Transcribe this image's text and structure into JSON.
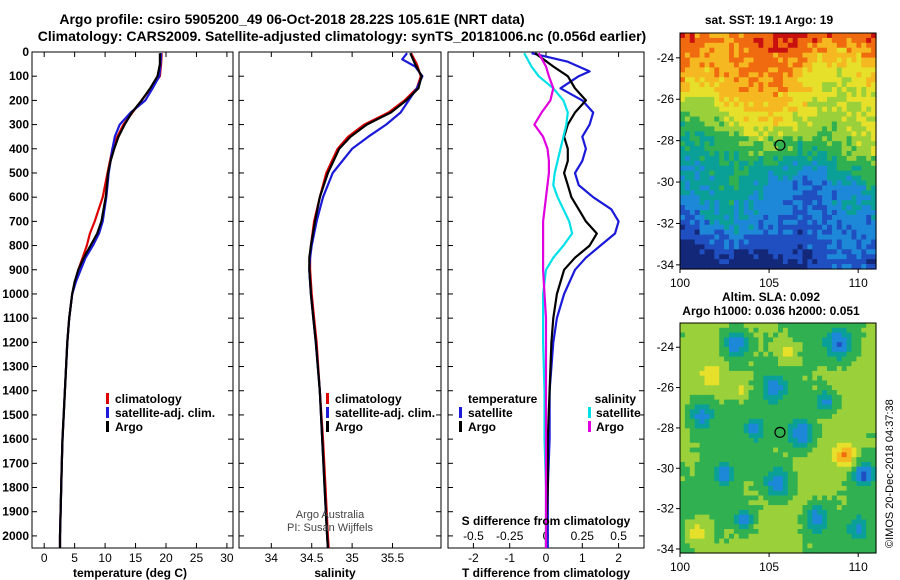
{
  "header": {
    "title_line1": "Argo profile: csiro 5905200_49 06-Oct-2018 28.22S 105.61E (NRT data)",
    "title_line2": "Climatology: CARS2009. Satellite-adjusted climatology: synTS_20181006.nc (0.056d earlier)"
  },
  "credits": {
    "argo_australia": "Argo Australia",
    "pi": "PI: Susan Wijffels",
    "imos_stamp": "©IMOS 20-Dec-2018 04:37:38"
  },
  "colors": {
    "climatology": "#dd0000",
    "satellite": "#1a1ad8",
    "argo": "#000000",
    "sat_salinity": "#00e0e8",
    "argo_salinity": "#e000e0"
  },
  "chart_data": [
    {
      "id": "temperature",
      "type": "line",
      "xlabel": "temperature (deg C)",
      "ylabel": "",
      "xlim": [
        -2,
        31
      ],
      "ylim": [
        2050,
        0
      ],
      "xticks": [
        0,
        5,
        10,
        15,
        20,
        25,
        30
      ],
      "yticks": [
        0,
        100,
        200,
        300,
        400,
        500,
        600,
        700,
        800,
        900,
        1000,
        1100,
        1200,
        1300,
        1400,
        1500,
        1600,
        1700,
        1800,
        1900,
        2000
      ],
      "legend": [
        "climatology",
        "satellite-adj. clim.",
        "Argo"
      ],
      "series": [
        {
          "name": "climatology",
          "color": "#dd0000",
          "depth": [
            5,
            50,
            100,
            150,
            200,
            250,
            300,
            350,
            400,
            450,
            500,
            600,
            700,
            750,
            800,
            850,
            900,
            950,
            1000,
            1100,
            1200,
            1300,
            1400,
            1500,
            1600,
            1700,
            1800,
            1900,
            2000,
            2050
          ],
          "values": [
            19.3,
            19.2,
            19.0,
            17.5,
            16.0,
            14.5,
            13.0,
            12.0,
            11.2,
            10.8,
            10.4,
            9.6,
            8.3,
            7.5,
            7.0,
            6.3,
            5.6,
            5.1,
            4.6,
            4.1,
            3.8,
            3.6,
            3.4,
            3.2,
            3.0,
            2.9,
            2.8,
            2.7,
            2.6,
            2.6
          ]
        },
        {
          "name": "satellite-adj. clim.",
          "color": "#1a1ad8",
          "depth": [
            5,
            50,
            100,
            150,
            200,
            250,
            300,
            350,
            400,
            450,
            500,
            600,
            700,
            750,
            800,
            850,
            900,
            950,
            1000,
            1100,
            1200,
            1300,
            1400,
            1500,
            1600,
            1700,
            1800,
            1900,
            2000,
            2050
          ],
          "values": [
            19.2,
            19.1,
            18.9,
            17.8,
            16.6,
            14.2,
            12.4,
            11.6,
            11.2,
            10.9,
            10.6,
            10.2,
            9.6,
            9.0,
            8.0,
            6.8,
            6.0,
            5.2,
            4.6,
            4.1,
            3.8,
            3.6,
            3.4,
            3.2,
            3.0,
            2.9,
            2.8,
            2.7,
            2.6,
            2.6
          ]
        },
        {
          "name": "Argo",
          "color": "#000000",
          "depth": [
            5,
            50,
            100,
            150,
            200,
            250,
            300,
            350,
            400,
            450,
            500,
            600,
            700,
            750,
            800,
            850,
            900,
            950,
            1000,
            1100,
            1200,
            1300,
            1400,
            1500,
            1600,
            1700,
            1800,
            1900,
            2000,
            2050
          ],
          "values": [
            19.0,
            19.0,
            18.6,
            17.4,
            16.0,
            14.4,
            13.2,
            12.2,
            11.5,
            10.9,
            10.5,
            10.1,
            9.4,
            8.7,
            7.6,
            6.5,
            5.6,
            5.0,
            4.6,
            4.1,
            3.8,
            3.6,
            3.4,
            3.2,
            3.0,
            2.9,
            2.8,
            2.7,
            2.6,
            2.6
          ]
        }
      ]
    },
    {
      "id": "salinity",
      "type": "line",
      "xlabel": "salinity",
      "ylabel": "",
      "xlim": [
        33.6,
        36.1
      ],
      "ylim": [
        2050,
        0
      ],
      "xticks": [
        34,
        34.5,
        35,
        35.5
      ],
      "legend": [
        "climatology",
        "satellite-adj. clim.",
        "Argo"
      ],
      "series": [
        {
          "name": "climatology",
          "color": "#dd0000",
          "depth": [
            5,
            50,
            100,
            150,
            200,
            250,
            300,
            350,
            400,
            500,
            600,
            700,
            800,
            850,
            900,
            1000,
            1100,
            1200,
            1400,
            1600,
            1800,
            2000,
            2050
          ],
          "values": [
            35.73,
            35.8,
            35.85,
            35.8,
            35.65,
            35.45,
            35.15,
            34.95,
            34.82,
            34.68,
            34.6,
            34.53,
            34.49,
            34.48,
            34.48,
            34.5,
            34.53,
            34.56,
            34.6,
            34.64,
            34.67,
            34.7,
            34.71
          ]
        },
        {
          "name": "satellite-adj. clim.",
          "color": "#1a1ad8",
          "depth": [
            5,
            30,
            60,
            100,
            150,
            200,
            250,
            300,
            350,
            400,
            500,
            600,
            700,
            800,
            850,
            900,
            1000,
            1100,
            1200,
            1400,
            1600,
            1800,
            2000,
            2050
          ],
          "values": [
            35.68,
            35.62,
            35.78,
            35.87,
            35.8,
            35.7,
            35.6,
            35.42,
            35.2,
            35.0,
            34.76,
            34.64,
            34.56,
            34.5,
            34.48,
            34.47,
            34.49,
            34.52,
            34.55,
            34.6,
            34.63,
            34.66,
            34.69,
            34.7
          ]
        },
        {
          "name": "Argo",
          "color": "#000000",
          "depth": [
            5,
            50,
            100,
            150,
            200,
            250,
            300,
            350,
            400,
            500,
            600,
            700,
            800,
            850,
            900,
            1000,
            1100,
            1200,
            1400,
            1600,
            1800,
            2000,
            2050
          ],
          "values": [
            35.72,
            35.78,
            35.86,
            35.82,
            35.67,
            35.48,
            35.18,
            34.98,
            34.84,
            34.7,
            34.6,
            34.54,
            34.49,
            34.47,
            34.47,
            34.49,
            34.52,
            34.55,
            34.6,
            34.63,
            34.66,
            34.69,
            34.7
          ]
        }
      ]
    },
    {
      "id": "difference",
      "type": "line",
      "xlabel": "T difference from climatology",
      "xlabel2": "S difference from climatology",
      "xlim": [
        -2.7,
        2.7
      ],
      "ylim": [
        2050,
        0
      ],
      "xticks": [
        -2,
        -1,
        0,
        1,
        2
      ],
      "xticks2": [
        -0.5,
        -0.25,
        0,
        0.25,
        0.5
      ],
      "xticklabels2": [
        "-0.5",
        "-0.25",
        "0",
        "0.25",
        "0.5"
      ],
      "legend_temperature_title": "temperature",
      "legend_salinity_title": "salinity",
      "legend_temperature": [
        "satellite",
        "Argo"
      ],
      "legend_salinity": [
        "satellite",
        "Argo"
      ],
      "series": [
        {
          "name": "T satellite",
          "color": "#1a1ad8",
          "depth": [
            5,
            40,
            80,
            100,
            150,
            200,
            250,
            300,
            350,
            400,
            450,
            500,
            550,
            600,
            650,
            700,
            750,
            800,
            850,
            900,
            1000,
            1100,
            1200,
            1400,
            1600,
            1800,
            2000,
            2050
          ],
          "values": [
            -0.4,
            0.6,
            1.2,
            0.9,
            0.4,
            1.0,
            1.3,
            1.2,
            1.0,
            1.1,
            1.0,
            0.8,
            0.9,
            1.3,
            1.8,
            2.0,
            1.9,
            1.5,
            1.1,
            0.8,
            0.5,
            0.3,
            0.2,
            0.1,
            0.1,
            0.05,
            0.05,
            0.05
          ]
        },
        {
          "name": "T Argo",
          "color": "#000000",
          "depth": [
            5,
            60,
            100,
            150,
            200,
            250,
            300,
            350,
            400,
            450,
            500,
            550,
            600,
            650,
            700,
            750,
            800,
            850,
            900,
            1000,
            1100,
            1200,
            1400,
            1600,
            1800,
            2000,
            2050
          ],
          "values": [
            -0.3,
            0.2,
            0.6,
            0.8,
            1.1,
            0.8,
            0.6,
            0.5,
            0.6,
            0.6,
            0.5,
            0.6,
            0.7,
            0.9,
            1.1,
            1.4,
            1.2,
            0.8,
            0.5,
            0.3,
            0.2,
            0.15,
            0.1,
            0.05,
            0.05,
            0.0,
            0.0
          ]
        },
        {
          "name": "S satellite",
          "color": "#00e0e8",
          "depth": [
            5,
            60,
            100,
            150,
            200,
            250,
            300,
            350,
            400,
            450,
            500,
            550,
            600,
            650,
            700,
            750,
            800,
            850,
            900,
            1000,
            1100,
            1200,
            1400,
            1600,
            1800,
            2000,
            2050
          ],
          "values": [
            -0.15,
            -0.1,
            -0.05,
            0.05,
            0.12,
            0.15,
            0.14,
            0.12,
            0.1,
            0.08,
            0.06,
            0.05,
            0.08,
            0.12,
            0.16,
            0.18,
            0.12,
            0.05,
            0.0,
            -0.02,
            -0.02,
            -0.02,
            -0.01,
            -0.01,
            0.0,
            0.0,
            0.0
          ]
        },
        {
          "name": "S Argo",
          "color": "#e000e0",
          "depth": [
            5,
            60,
            100,
            150,
            200,
            250,
            300,
            350,
            400,
            450,
            500,
            600,
            700,
            800,
            850,
            900,
            1000,
            1100,
            1200,
            1400,
            1600,
            1800,
            2000,
            2050
          ],
          "values": [
            -0.05,
            0.0,
            0.02,
            0.05,
            0.03,
            -0.03,
            -0.08,
            -0.02,
            0.01,
            0.02,
            0.02,
            0.0,
            -0.02,
            -0.02,
            -0.02,
            -0.02,
            -0.01,
            0.0,
            0.0,
            0.0,
            0.0,
            0.0,
            0.0,
            0.0
          ]
        }
      ]
    },
    {
      "id": "sst_map",
      "type": "heatmap",
      "title": "sat. SST: 19.1 Argo: 19",
      "xlim": [
        100,
        111
      ],
      "ylim": [
        -34.2,
        -22.8
      ],
      "xticks": [
        100,
        105,
        110
      ],
      "yticks": [
        -24,
        -26,
        -28,
        -30,
        -32,
        -34
      ],
      "float_position": {
        "lon": 105.61,
        "lat": -28.22
      },
      "palette": [
        "#7a001a",
        "#c81010",
        "#f06a10",
        "#f5b820",
        "#e6e02a",
        "#9ad03a",
        "#30b050",
        "#0aa098",
        "#1e88d8",
        "#1f4fc0",
        "#14287a"
      ]
    },
    {
      "id": "sla_map",
      "type": "heatmap",
      "title_line1": "Altim. SLA: 0.092",
      "title_line2": "Argo h1000: 0.036 h2000: 0.051",
      "xlim": [
        100,
        111
      ],
      "ylim": [
        -34.2,
        -22.8
      ],
      "xticks": [
        100,
        105,
        110
      ],
      "yticks": [
        -24,
        -26,
        -28,
        -30,
        -32,
        -34
      ],
      "float_position": {
        "lon": 105.61,
        "lat": -28.22
      },
      "palette": [
        "#1f4fc0",
        "#1e88d8",
        "#0aa098",
        "#30b050",
        "#9ad03a",
        "#e6e02a",
        "#f5b820",
        "#f06a10",
        "#c81010"
      ]
    }
  ]
}
